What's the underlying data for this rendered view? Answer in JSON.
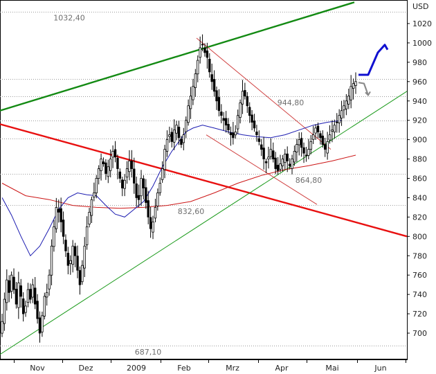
{
  "chart_data": {
    "type": "candlestick",
    "currency": "USD",
    "y_ticks": [
      700,
      720,
      740,
      760,
      780,
      800,
      820,
      840,
      860,
      880,
      900,
      920,
      940,
      960,
      980,
      1000,
      1020
    ],
    "y_tick_labels": [
      "700",
      "720",
      "740",
      "760",
      "780",
      "800",
      "820",
      "840",
      "860",
      "880",
      "900",
      "920",
      "940",
      "960",
      "980",
      "1000",
      "1020"
    ],
    "ylim": [
      677,
      1042
    ],
    "x_ticks": [
      "Nov",
      "Dez",
      "2009",
      "Feb",
      "Mrz",
      "Apr",
      "Mai",
      "Jun"
    ],
    "levels": [
      {
        "value": 1032.4,
        "label": "1032,40"
      },
      {
        "value": 944.8,
        "label": "944,80"
      },
      {
        "value": 864.8,
        "label": "864,80"
      },
      {
        "value": 832.6,
        "label": "832,60"
      },
      {
        "value": 687.1,
        "label": "687,10"
      }
    ],
    "extra_grid_levels": [
      963,
      920,
      901
    ],
    "closes": [
      712,
      735,
      755,
      742,
      760,
      745,
      730,
      752,
      738,
      720,
      728,
      745,
      735,
      750,
      730,
      715,
      700,
      718,
      738,
      742,
      760,
      790,
      810,
      830,
      825,
      815,
      800,
      785,
      770,
      775,
      790,
      780,
      765,
      750,
      770,
      790,
      810,
      825,
      838,
      845,
      860,
      870,
      880,
      875,
      865,
      872,
      880,
      888,
      882,
      870,
      860,
      850,
      858,
      870,
      878,
      870,
      855,
      840,
      838,
      860,
      850,
      835,
      820,
      808,
      815,
      830,
      845,
      855,
      870,
      890,
      900,
      905,
      898,
      910,
      915,
      902,
      895,
      905,
      920,
      935,
      945,
      955,
      968,
      982,
      995,
      998,
      990,
      985,
      970,
      960,
      950,
      940,
      930,
      925,
      920,
      915,
      910,
      905,
      902,
      908,
      925,
      938,
      950,
      945,
      935,
      925,
      918,
      912,
      905,
      898,
      890,
      880,
      876,
      882,
      890,
      880,
      870,
      868,
      875,
      880,
      885,
      878,
      873,
      880,
      888,
      895,
      900,
      892,
      886,
      884,
      890,
      898,
      905,
      912,
      908,
      902,
      895,
      890,
      898,
      905,
      910,
      915,
      918,
      925,
      930,
      935,
      940,
      945,
      955,
      958,
      960
    ],
    "start_open": 700,
    "start_index": 0,
    "price_scale": {
      "min": 677,
      "max": 1042
    },
    "sma_blue": [
      [
        0,
        840
      ],
      [
        8,
        822
      ],
      [
        16,
        800
      ],
      [
        24,
        780
      ],
      [
        32,
        790
      ],
      [
        40,
        808
      ],
      [
        48,
        828
      ],
      [
        56,
        840
      ],
      [
        64,
        845
      ],
      [
        72,
        843
      ],
      [
        80,
        842
      ],
      [
        88,
        832
      ],
      [
        96,
        823
      ],
      [
        104,
        820
      ],
      [
        112,
        828
      ],
      [
        120,
        836
      ],
      [
        128,
        852
      ],
      [
        136,
        872
      ],
      [
        144,
        888
      ],
      [
        150,
        898
      ],
      [
        156,
        908
      ],
      [
        162,
        912
      ],
      [
        170,
        915
      ],
      [
        180,
        912
      ],
      [
        192,
        908
      ],
      [
        204,
        905
      ],
      [
        216,
        903
      ],
      [
        228,
        902
      ],
      [
        240,
        905
      ],
      [
        252,
        910
      ],
      [
        264,
        915
      ],
      [
        276,
        918
      ],
      [
        288,
        920
      ]
    ],
    "sma_red": [
      [
        0,
        855
      ],
      [
        20,
        842
      ],
      [
        40,
        838
      ],
      [
        60,
        832
      ],
      [
        80,
        830
      ],
      [
        100,
        829
      ],
      [
        120,
        830
      ],
      [
        140,
        832
      ],
      [
        160,
        836
      ],
      [
        180,
        845
      ],
      [
        200,
        855
      ],
      [
        220,
        863
      ],
      [
        240,
        869
      ],
      [
        260,
        873
      ],
      [
        280,
        878
      ],
      [
        300,
        884
      ]
    ],
    "trendlines": [
      {
        "name": "green-thick",
        "color": "#138a13",
        "from": [
          0,
          930
        ],
        "to": [
          512,
          1042
        ]
      },
      {
        "name": "red-thick",
        "color": "#e81010",
        "from": [
          0,
          916
        ],
        "to": [
          588,
          800
        ]
      },
      {
        "name": "green-thin",
        "color": "#1a9a1a",
        "from": [
          0,
          678
        ],
        "to": [
          588,
          950
        ]
      },
      {
        "name": "red-thin-upper",
        "color": "#d04040",
        "from": [
          284,
          1005
        ],
        "to": [
          478,
          890
        ]
      },
      {
        "name": "red-thin-lower",
        "color": "#d04040",
        "from": [
          298,
          905
        ],
        "to": [
          458,
          833
        ]
      }
    ],
    "projections": [
      {
        "name": "blue-up",
        "color": "#1010d0",
        "points": [
          [
            518,
            967
          ],
          [
            532,
            967
          ],
          [
            546,
            990
          ],
          [
            556,
            998
          ],
          [
            560,
            993
          ]
        ]
      },
      {
        "name": "gray-down",
        "color": "#8a8a8a",
        "points": [
          [
            518,
            959
          ],
          [
            526,
            958
          ],
          [
            532,
            946
          ]
        ]
      }
    ]
  }
}
